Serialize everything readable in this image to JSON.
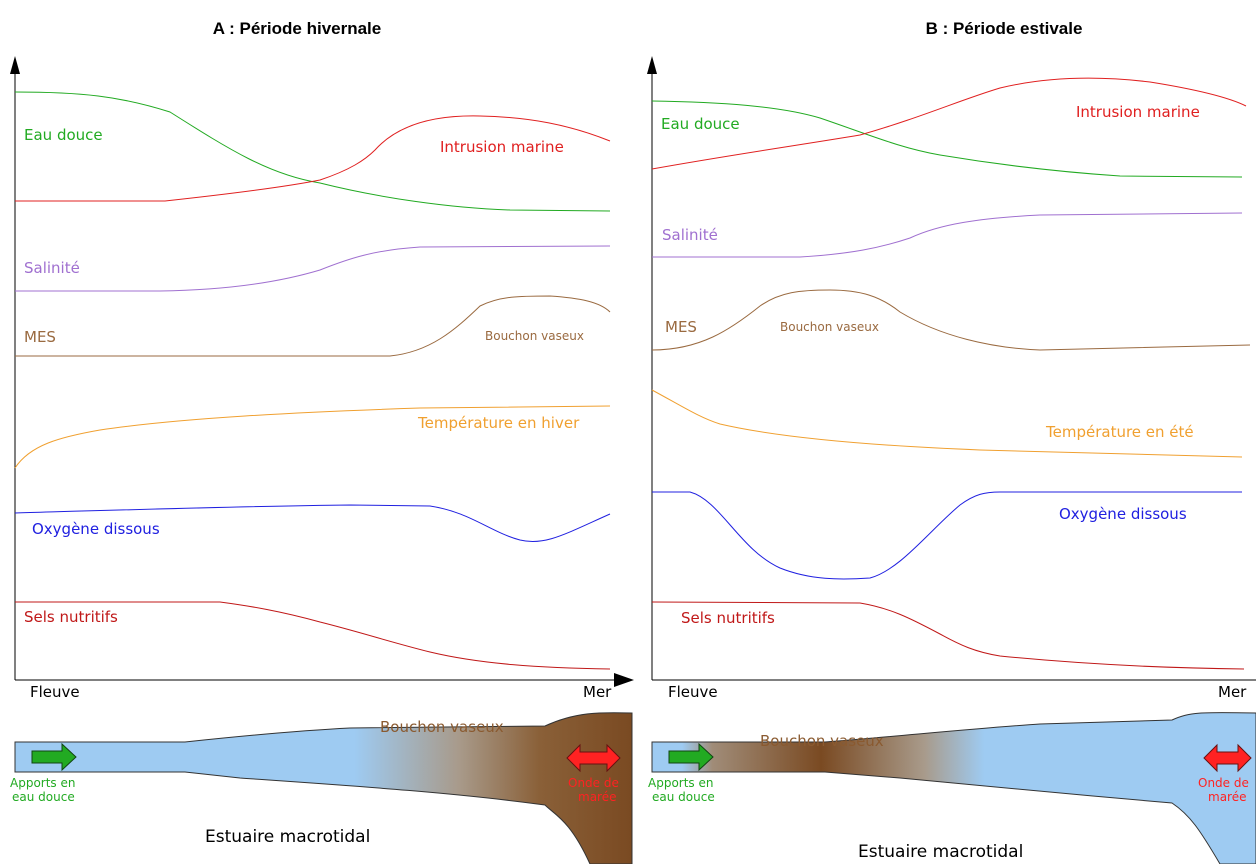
{
  "panel_a": {
    "title": "A : Période hivernale",
    "labels": {
      "eau_douce": "Eau douce",
      "intrusion_marine": "Intrusion marine",
      "salinite": "Salinité",
      "mes": "MES",
      "bouchon_vaseux_curve": "Bouchon vaseux",
      "temperature": "Température en hiver",
      "oxygene": "Oxygène dissous",
      "sels": "Sels nutritifs"
    },
    "axis": {
      "left": "Fleuve",
      "right": "Mer"
    },
    "estuary": {
      "bouchon_vaseux": "Bouchon vaseux",
      "apports_line1": "Apports en",
      "apports_line2": "eau douce",
      "onde_line1": "Onde de",
      "onde_line2": "marée",
      "title": "Estuaire macrotidal"
    }
  },
  "panel_b": {
    "title": "B : Période estivale",
    "labels": {
      "eau_douce": "Eau douce",
      "intrusion_marine": "Intrusion marine",
      "salinite": "Salinité",
      "mes": "MES",
      "bouchon_vaseux_curve": "Bouchon vaseux",
      "temperature": "Température en été",
      "oxygene": "Oxygène dissous",
      "sels": "Sels nutritifs"
    },
    "axis": {
      "left": "Fleuve",
      "right": "Mer"
    },
    "estuary": {
      "bouchon_vaseux": "Bouchon vaseux",
      "apports_line1": "Apports en",
      "apports_line2": "eau douce",
      "onde_line1": "Onde de",
      "onde_line2": "marée",
      "title": "Estuaire macrotidal"
    }
  },
  "colors": {
    "eau_douce": "#22aa22",
    "intrusion_marine": "#e02020",
    "salinite": "#a070d0",
    "mes": "#9a6a40",
    "temperature": "#f0a030",
    "oxygene": "#2020e0",
    "sels": "#c01818",
    "water": "#9ecbf2",
    "mud": "#7a4a22",
    "arrow_green": "#22aa22",
    "arrow_red": "#ff2222"
  }
}
